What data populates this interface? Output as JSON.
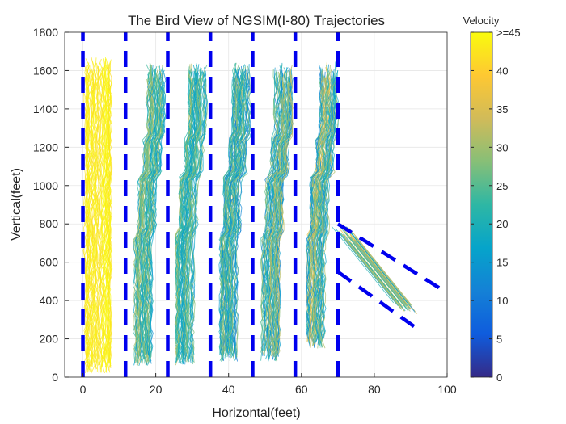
{
  "chart_data": {
    "type": "line",
    "title": "The Bird View of NGSIM(I-80) Trajectories",
    "xlabel": "Horizontal(feet)",
    "ylabel": "Vertical(feet)",
    "xlim": [
      -5,
      100
    ],
    "ylim": [
      0,
      1800
    ],
    "xticks": [
      0,
      20,
      40,
      60,
      80,
      100
    ],
    "yticks": [
      0,
      200,
      400,
      600,
      800,
      1000,
      1200,
      1400,
      1600,
      1800
    ],
    "grid": true,
    "colorbar": {
      "label": "Velocity",
      "range": [
        0,
        45
      ],
      "ticks": [
        "0",
        "5",
        "10",
        "15",
        "20",
        "25",
        "30",
        "35",
        "40",
        ">=45"
      ],
      "colormap": [
        "#352a87",
        "#0f5cdd",
        "#1481d6",
        "#06a4ca",
        "#2eb7a4",
        "#87bf77",
        "#d1bb59",
        "#fec832",
        "#f9fb0e"
      ]
    },
    "lane_markings": {
      "color": "#0000ee",
      "style": "dashed",
      "vertical_x": [
        0,
        11.7,
        23.3,
        35,
        46.6,
        58.3,
        70
      ],
      "y_range": [
        0,
        1800
      ],
      "merge_lines": [
        {
          "from": [
            70,
            800
          ],
          "to": [
            100,
            440
          ]
        },
        {
          "from": [
            70,
            550
          ],
          "to": [
            92,
            250
          ]
        }
      ]
    },
    "lane_trajectories": [
      {
        "lane": 1,
        "center_x": 4,
        "dominant_velocity": ">=45",
        "y_range": [
          20,
          1680
        ]
      },
      {
        "lane": 2,
        "center_x": 17.5,
        "dominant_velocity": "15-30",
        "y_range": [
          60,
          1650
        ]
      },
      {
        "lane": 3,
        "center_x": 29,
        "dominant_velocity": "15-30",
        "y_range": [
          60,
          1650
        ]
      },
      {
        "lane": 4,
        "center_x": 41,
        "dominant_velocity": "10-30",
        "y_range": [
          80,
          1650
        ]
      },
      {
        "lane": 5,
        "center_x": 52.5,
        "dominant_velocity": "10-30",
        "y_range": [
          80,
          1650
        ]
      },
      {
        "lane": 6,
        "center_x": 65,
        "dominant_velocity": "10-35",
        "y_range": [
          150,
          1650
        ]
      },
      {
        "lane": 7,
        "center_x": 80,
        "dominant_velocity": "10-35",
        "y_range": [
          330,
          800
        ]
      }
    ]
  }
}
